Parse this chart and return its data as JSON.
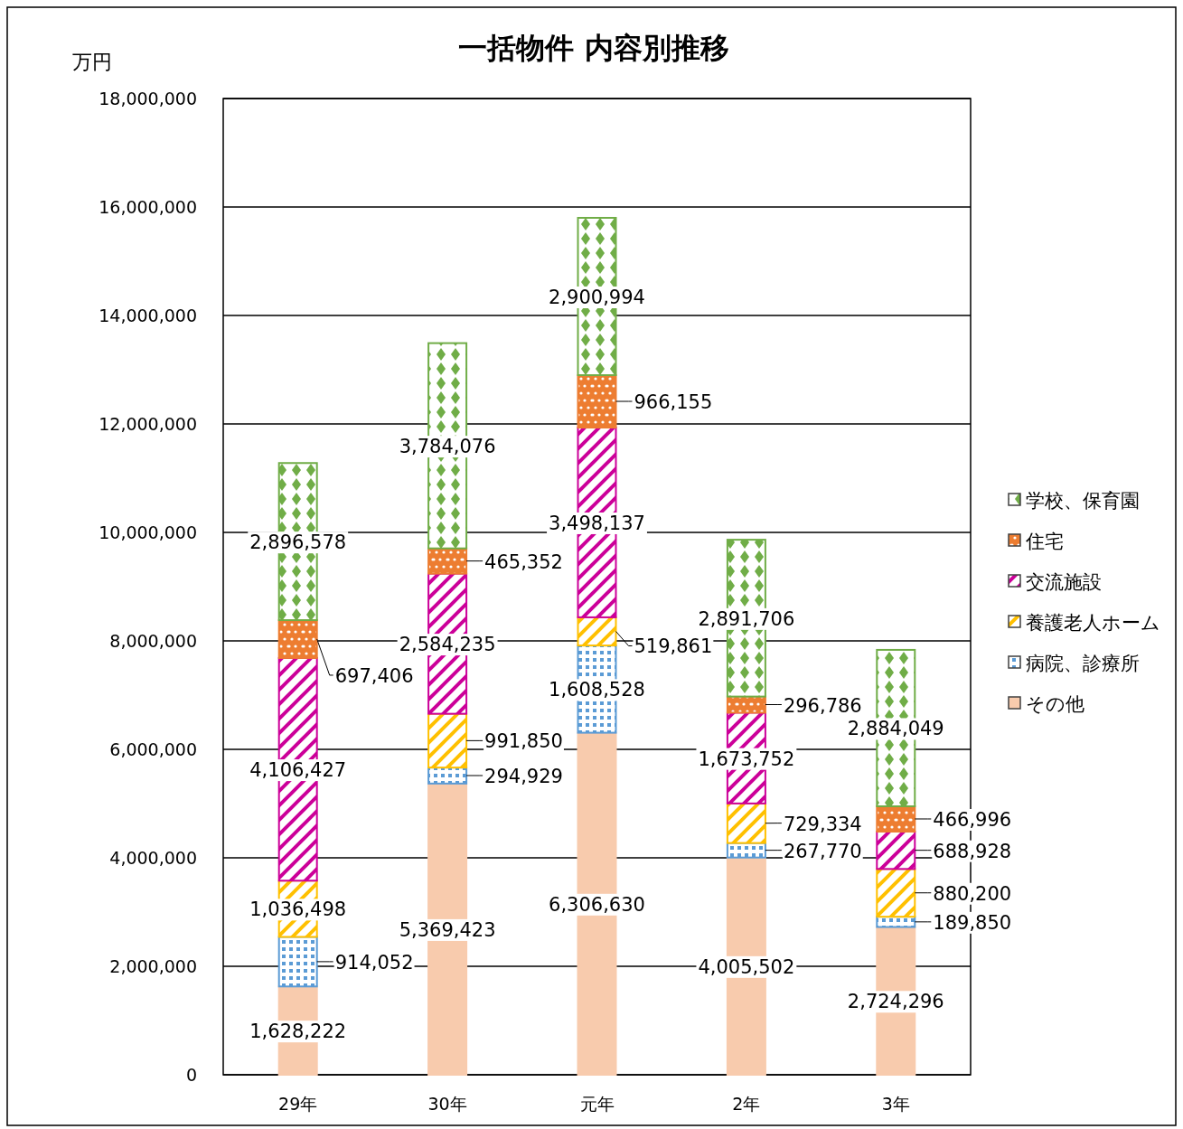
{
  "chart_data": {
    "type": "bar",
    "stacked": true,
    "title": "一括物件 内容別推移",
    "ylabel": "万円",
    "categories": [
      "29年",
      "30年",
      "元年",
      "2年",
      "3年"
    ],
    "series": [
      {
        "name": "その他",
        "color": "#f8cbad",
        "values": [
          1628222,
          5369423,
          6306630,
          4005502,
          2724296
        ],
        "value_labels": [
          "1,628,222",
          "5,369,423",
          "6,306,630",
          "4,005,502",
          "2,724,296"
        ]
      },
      {
        "name": "病院、診療所",
        "color": "#5b9bd5",
        "values": [
          914052,
          294929,
          1608528,
          267770,
          189850
        ],
        "value_labels": [
          "914,052",
          "294,929",
          "1,608,528",
          "267,770",
          "189,850"
        ]
      },
      {
        "name": "養護老人ホーム",
        "color": "#ffc000",
        "values": [
          1036498,
          991850,
          519861,
          729334,
          880200
        ],
        "value_labels": [
          "1,036,498",
          "991,850",
          "519,861",
          "729,334",
          "880,200"
        ]
      },
      {
        "name": "交流施設",
        "color": "#cc0099",
        "values": [
          4106427,
          2584235,
          3498137,
          1673752,
          688928
        ],
        "value_labels": [
          "4,106,427",
          "2,584,235",
          "3,498,137",
          "1,673,752",
          "688,928"
        ]
      },
      {
        "name": "住宅",
        "color": "#ed7d31",
        "values": [
          697406,
          465352,
          966155,
          296786,
          466996
        ],
        "value_labels": [
          "697,406",
          "465,352",
          "966,155",
          "296,786",
          "466,996"
        ]
      },
      {
        "name": "学校、保育園",
        "color": "#70ad47",
        "values": [
          2896578,
          3784076,
          2900994,
          2891706,
          2884049
        ],
        "value_labels": [
          "2,896,578",
          "3,784,076",
          "2,900,994",
          "2,891,706",
          "2,884,049"
        ]
      }
    ],
    "ylim": [
      0,
      18000000
    ],
    "yticks": [
      {
        "value": 0,
        "label": "0"
      },
      {
        "value": 2000000,
        "label": "2,000,000"
      },
      {
        "value": 4000000,
        "label": "4,000,000"
      },
      {
        "value": 6000000,
        "label": "6,000,000"
      },
      {
        "value": 8000000,
        "label": "8,000,000"
      },
      {
        "value": 10000000,
        "label": "10,000,000"
      },
      {
        "value": 12000000,
        "label": "12,000,000"
      },
      {
        "value": 14000000,
        "label": "14,000,000"
      },
      {
        "value": 16000000,
        "label": "16,000,000"
      },
      {
        "value": 18000000,
        "label": "18,000,000"
      }
    ],
    "grid": "y",
    "legend": "right"
  }
}
